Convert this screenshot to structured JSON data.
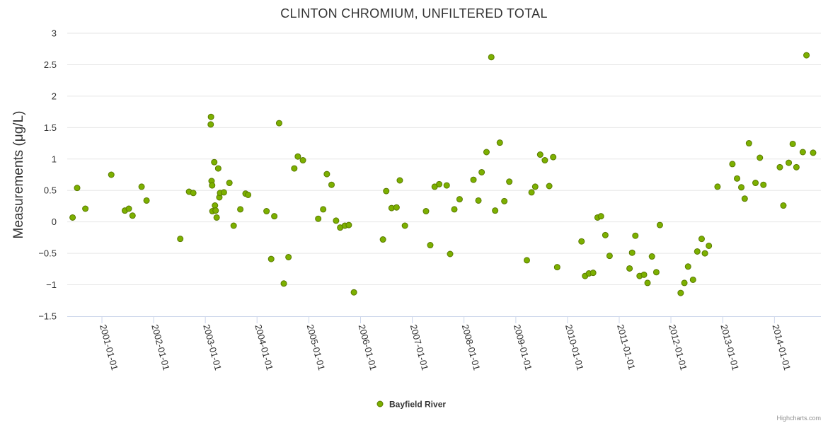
{
  "credits": "Highcharts.com",
  "chart_data": {
    "type": "scatter",
    "title": "CLINTON CHROMIUM, UNFILTERED TOTAL",
    "ylabel": "Measurements (μg/L)",
    "xlabel": "",
    "ylim": [
      -1.5,
      3
    ],
    "yticks": [
      -1.5,
      -1,
      -0.5,
      0,
      0.5,
      1,
      1.5,
      2,
      2.5,
      3
    ],
    "ytick_labels": [
      "−1.5",
      "−1",
      "−0.5",
      "0",
      "0.5",
      "1",
      "1.5",
      "2",
      "2.5",
      "3"
    ],
    "xlim": [
      "2000-05-01",
      "2014-11-25"
    ],
    "xticks": [
      "2001-01-01",
      "2002-01-01",
      "2003-01-01",
      "2004-01-01",
      "2005-01-01",
      "2006-01-01",
      "2007-01-01",
      "2008-01-01",
      "2009-01-01",
      "2010-01-01",
      "2011-01-01",
      "2012-01-01",
      "2013-01-01",
      "2014-01-01"
    ],
    "grid": true,
    "legend_position": "bottom-center",
    "colors": {
      "marker_fill": "#7cb000",
      "marker_stroke": "#5a7a00"
    },
    "series": [
      {
        "name": "Bayfield River",
        "points": [
          [
            "2000-06-08",
            0.07
          ],
          [
            "2000-07-10",
            0.54
          ],
          [
            "2000-09-06",
            0.21
          ],
          [
            "2001-03-08",
            0.75
          ],
          [
            "2001-06-12",
            0.18
          ],
          [
            "2001-07-10",
            0.21
          ],
          [
            "2001-08-05",
            0.1
          ],
          [
            "2001-10-08",
            0.56
          ],
          [
            "2001-11-12",
            0.34
          ],
          [
            "2002-07-08",
            -0.27
          ],
          [
            "2002-09-08",
            0.48
          ],
          [
            "2002-10-08",
            0.46
          ],
          [
            "2003-02-08",
            1.55
          ],
          [
            "2003-02-10",
            1.67
          ],
          [
            "2003-02-14",
            0.65
          ],
          [
            "2003-02-18",
            0.58
          ],
          [
            "2003-02-20",
            0.17
          ],
          [
            "2003-03-05",
            0.95
          ],
          [
            "2003-03-10",
            0.26
          ],
          [
            "2003-03-15",
            0.18
          ],
          [
            "2003-03-22",
            0.07
          ],
          [
            "2003-04-02",
            0.85
          ],
          [
            "2003-04-10",
            0.39
          ],
          [
            "2003-04-15",
            0.46
          ],
          [
            "2003-05-12",
            0.47
          ],
          [
            "2003-06-20",
            0.62
          ],
          [
            "2003-07-20",
            -0.06
          ],
          [
            "2003-09-05",
            0.2
          ],
          [
            "2003-10-12",
            0.45
          ],
          [
            "2003-10-30",
            0.43
          ],
          [
            "2004-03-08",
            0.17
          ],
          [
            "2004-04-10",
            -0.59
          ],
          [
            "2004-05-02",
            0.09
          ],
          [
            "2004-06-05",
            1.57
          ],
          [
            "2004-07-08",
            -0.98
          ],
          [
            "2004-08-10",
            -0.56
          ],
          [
            "2004-09-20",
            0.85
          ],
          [
            "2004-10-15",
            1.04
          ],
          [
            "2004-11-20",
            0.98
          ],
          [
            "2005-03-08",
            0.05
          ],
          [
            "2005-04-12",
            0.2
          ],
          [
            "2005-05-08",
            0.76
          ],
          [
            "2005-06-10",
            0.59
          ],
          [
            "2005-07-12",
            0.02
          ],
          [
            "2005-08-10",
            -0.09
          ],
          [
            "2005-09-12",
            -0.06
          ],
          [
            "2005-10-10",
            -0.05
          ],
          [
            "2005-11-15",
            -1.12
          ],
          [
            "2006-06-08",
            -0.28
          ],
          [
            "2006-07-01",
            0.49
          ],
          [
            "2006-08-08",
            0.22
          ],
          [
            "2006-09-12",
            0.23
          ],
          [
            "2006-10-05",
            0.66
          ],
          [
            "2006-11-10",
            -0.06
          ],
          [
            "2007-04-08",
            0.17
          ],
          [
            "2007-05-08",
            -0.37
          ],
          [
            "2007-06-08",
            0.56
          ],
          [
            "2007-07-10",
            0.6
          ],
          [
            "2007-09-01",
            0.58
          ],
          [
            "2007-09-25",
            -0.51
          ],
          [
            "2007-10-25",
            0.2
          ],
          [
            "2007-12-01",
            0.36
          ],
          [
            "2008-03-08",
            0.67
          ],
          [
            "2008-04-12",
            0.34
          ],
          [
            "2008-05-05",
            0.79
          ],
          [
            "2008-06-08",
            1.11
          ],
          [
            "2008-07-12",
            2.62
          ],
          [
            "2008-08-08",
            0.18
          ],
          [
            "2008-09-10",
            1.26
          ],
          [
            "2008-10-12",
            0.33
          ],
          [
            "2008-11-16",
            0.64
          ],
          [
            "2009-03-20",
            -0.61
          ],
          [
            "2009-04-22",
            0.47
          ],
          [
            "2009-05-18",
            0.56
          ],
          [
            "2009-06-22",
            1.07
          ],
          [
            "2009-07-25",
            0.98
          ],
          [
            "2009-08-25",
            0.57
          ],
          [
            "2009-09-22",
            1.03
          ],
          [
            "2009-10-20",
            -0.72
          ],
          [
            "2010-04-10",
            -0.31
          ],
          [
            "2010-05-05",
            -0.86
          ],
          [
            "2010-06-01",
            -0.82
          ],
          [
            "2010-07-01",
            -0.81
          ],
          [
            "2010-08-01",
            0.07
          ],
          [
            "2010-08-25",
            0.09
          ],
          [
            "2010-09-25",
            -0.21
          ],
          [
            "2010-10-25",
            -0.54
          ],
          [
            "2011-03-15",
            -0.74
          ],
          [
            "2011-04-02",
            -0.49
          ],
          [
            "2011-04-25",
            -0.22
          ],
          [
            "2011-05-25",
            -0.86
          ],
          [
            "2011-06-25",
            -0.84
          ],
          [
            "2011-07-20",
            -0.97
          ],
          [
            "2011-08-20",
            -0.55
          ],
          [
            "2011-09-20",
            -0.8
          ],
          [
            "2011-10-15",
            -0.05
          ],
          [
            "2012-03-10",
            -1.13
          ],
          [
            "2012-04-05",
            -0.97
          ],
          [
            "2012-05-01",
            -0.71
          ],
          [
            "2012-06-05",
            -0.92
          ],
          [
            "2012-07-05",
            -0.47
          ],
          [
            "2012-08-05",
            -0.27
          ],
          [
            "2012-08-28",
            -0.5
          ],
          [
            "2012-09-25",
            -0.38
          ],
          [
            "2012-11-25",
            0.56
          ],
          [
            "2013-03-10",
            0.92
          ],
          [
            "2013-04-12",
            0.69
          ],
          [
            "2013-05-12",
            0.55
          ],
          [
            "2013-06-05",
            0.37
          ],
          [
            "2013-07-05",
            1.25
          ],
          [
            "2013-08-20",
            0.62
          ],
          [
            "2013-09-20",
            1.02
          ],
          [
            "2013-10-15",
            0.59
          ],
          [
            "2014-02-08",
            0.87
          ],
          [
            "2014-03-05",
            0.26
          ],
          [
            "2014-04-12",
            0.94
          ],
          [
            "2014-05-10",
            1.24
          ],
          [
            "2014-06-05",
            0.87
          ],
          [
            "2014-07-20",
            1.11
          ],
          [
            "2014-08-15",
            2.65
          ],
          [
            "2014-10-01",
            1.1
          ]
        ]
      }
    ]
  }
}
